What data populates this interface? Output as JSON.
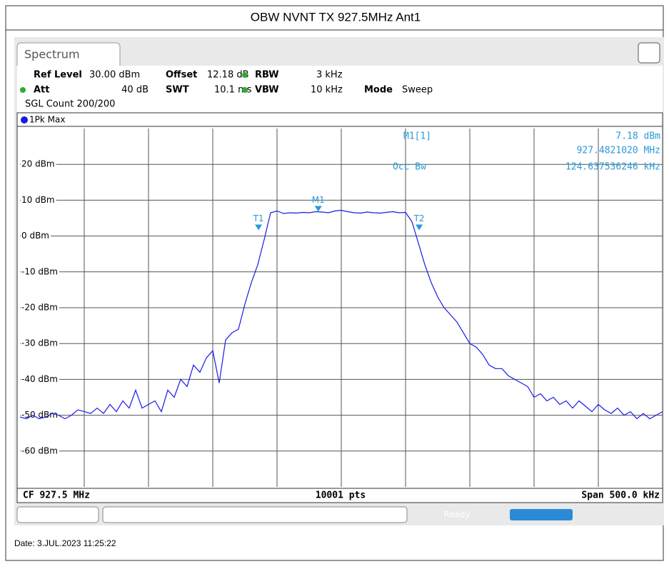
{
  "chart_data": {
    "type": "line",
    "title": "OBW NVNT TX 927.5MHz Ant1",
    "tab": "Spectrum",
    "header": {
      "ref_level_label": "Ref Level",
      "ref_level": "30.00 dBm",
      "offset_label": "Offset",
      "offset": "12.18 dB",
      "rbw_label": "RBW",
      "rbw": "3 kHz",
      "att_label": "Att",
      "att": "40 dB",
      "swt_label": "SWT",
      "swt": "10.1 ms",
      "vbw_label": "VBW",
      "vbw": "10 kHz",
      "mode_label": "Mode",
      "mode": "Sweep",
      "count": "SGL Count 200/200"
    },
    "trace_label": "1Pk Max",
    "marker_info": {
      "name": "M1[1]",
      "level": "7.18 dBm",
      "freq": "927.4821020 MHz",
      "occ_label": "Occ Bw",
      "occ": "124.637536246 kHz"
    },
    "markers": [
      {
        "label": "M1",
        "x": 927.482102,
        "y": 7.18
      },
      {
        "label": "T1",
        "x": 927.4356,
        "y": 2
      },
      {
        "label": "T2",
        "x": 927.5606,
        "y": 2
      }
    ],
    "footer": {
      "cf": "CF 927.5 MHz",
      "pts": "10001 pts",
      "span": "Span 500.0 kHz"
    },
    "status": "Ready",
    "date": "Date: 3.JUL.2023  11:25:22",
    "xlim": [
      927.25,
      927.75
    ],
    "ylim": [
      -70,
      30
    ],
    "yticks": [
      {
        "value": 20,
        "label": "20 dBm"
      },
      {
        "value": 10,
        "label": "10 dBm"
      },
      {
        "value": 0,
        "label": "0 dBm"
      },
      {
        "value": -10,
        "label": "-10 dBm"
      },
      {
        "value": -20,
        "label": "-20 dBm"
      },
      {
        "value": -30,
        "label": "-30 dBm"
      },
      {
        "value": -40,
        "label": "-40 dBm"
      },
      {
        "value": -50,
        "label": "-50 dBm"
      },
      {
        "value": -60,
        "label": "-60 dBm"
      }
    ],
    "grid": true,
    "series": [
      {
        "name": "1Pk Max",
        "color": "#1a1ae6",
        "x": [
          927.25,
          927.255,
          927.26,
          927.265,
          927.27,
          927.275,
          927.28,
          927.285,
          927.29,
          927.295,
          927.3,
          927.305,
          927.31,
          927.315,
          927.32,
          927.325,
          927.33,
          927.335,
          927.34,
          927.345,
          927.35,
          927.355,
          927.36,
          927.365,
          927.37,
          927.375,
          927.38,
          927.385,
          927.39,
          927.395,
          927.4,
          927.405,
          927.41,
          927.415,
          927.42,
          927.425,
          927.43,
          927.435,
          927.44,
          927.445,
          927.45,
          927.455,
          927.46,
          927.465,
          927.47,
          927.475,
          927.48,
          927.485,
          927.49,
          927.495,
          927.5,
          927.505,
          927.51,
          927.515,
          927.52,
          927.525,
          927.53,
          927.535,
          927.54,
          927.545,
          927.55,
          927.555,
          927.56,
          927.565,
          927.57,
          927.575,
          927.58,
          927.585,
          927.59,
          927.595,
          927.6,
          927.605,
          927.61,
          927.615,
          927.62,
          927.625,
          927.63,
          927.635,
          927.64,
          927.645,
          927.65,
          927.655,
          927.66,
          927.665,
          927.67,
          927.675,
          927.68,
          927.685,
          927.69,
          927.695,
          927.7,
          927.705,
          927.71,
          927.715,
          927.72,
          927.725,
          927.73,
          927.735,
          927.74,
          927.745,
          927.75
        ],
        "values": [
          -50.5,
          -51,
          -50,
          -51,
          -50.5,
          -49.5,
          -50,
          -51,
          -50,
          -48.5,
          -49,
          -49.5,
          -48,
          -49.5,
          -47,
          -49,
          -46,
          -48,
          -43,
          -48,
          -47,
          -46,
          -49,
          -43,
          -45,
          -40,
          -42,
          -36,
          -38,
          -34,
          -32,
          -41,
          -29,
          -27,
          -26,
          -19,
          -13,
          -8,
          -1,
          6.5,
          7,
          6.3,
          6.5,
          6.4,
          6.6,
          6.5,
          6.8,
          6.7,
          6.5,
          7,
          7.2,
          6.8,
          6.5,
          6.4,
          6.7,
          6.5,
          6.4,
          6.6,
          6.8,
          6.5,
          6.6,
          4,
          -2,
          -8,
          -13,
          -17,
          -20,
          -22,
          -24,
          -27,
          -30,
          -31,
          -33,
          -36,
          -37,
          -37,
          -39,
          -40,
          -41,
          -42,
          -45,
          -44,
          -46,
          -45,
          -47,
          -46,
          -48,
          -46,
          -47.5,
          -49,
          -47,
          -48.5,
          -49.5,
          -48,
          -50,
          -49,
          -51,
          -49.5,
          -51,
          -50,
          -49
        ]
      }
    ]
  }
}
